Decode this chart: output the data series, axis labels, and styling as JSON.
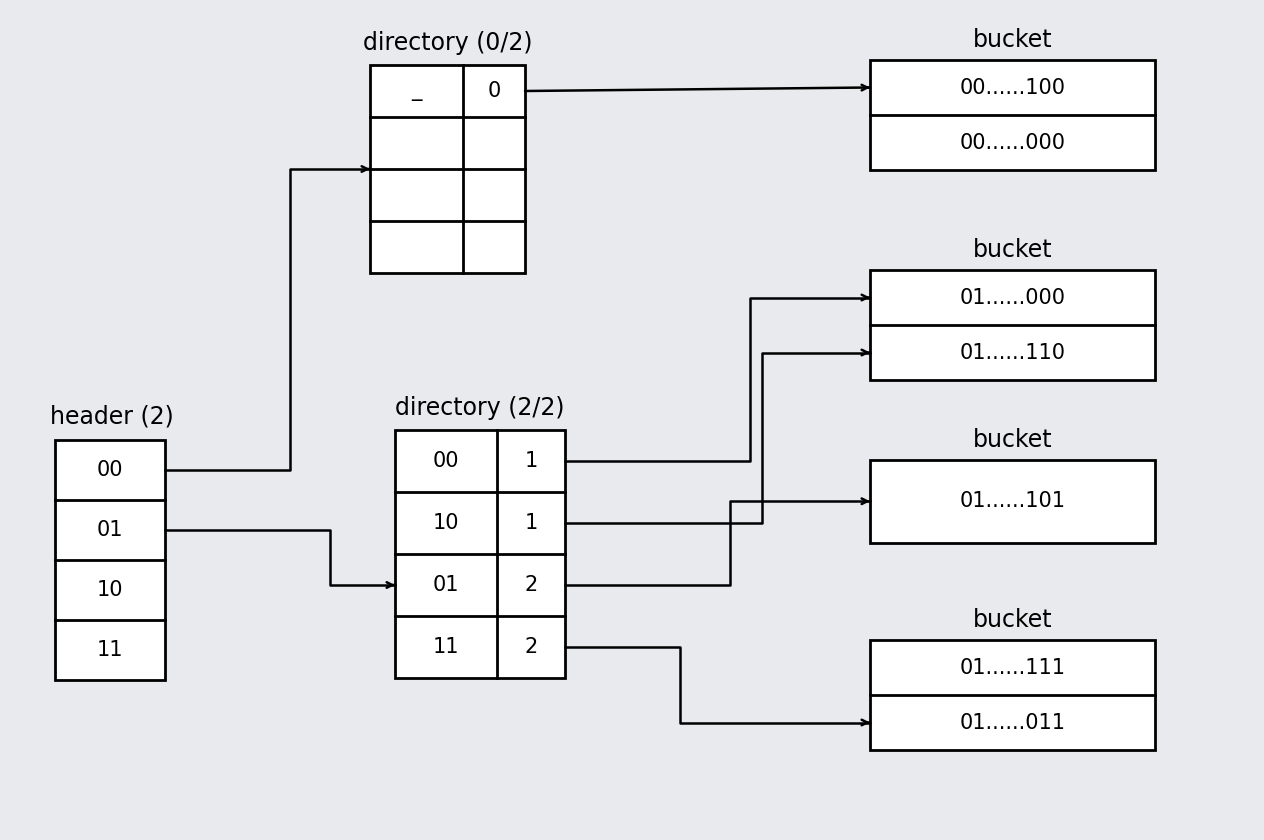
{
  "bg_color": "#e8eaed",
  "font_size": 15,
  "label_font_size": 17,
  "header_label": "header (2)",
  "header_rows": [
    "00",
    "01",
    "10",
    "11"
  ],
  "dir1_label": "directory (0/2)",
  "dir1_rows": [
    [
      "_",
      "0"
    ],
    [
      "",
      ""
    ],
    [
      "",
      ""
    ],
    [
      "",
      ""
    ]
  ],
  "dir2_label": "directory (2/2)",
  "dir2_rows": [
    [
      "00",
      "1"
    ],
    [
      "10",
      "1"
    ],
    [
      "01",
      "2"
    ],
    [
      "11",
      "2"
    ]
  ],
  "bucket1_label": "bucket",
  "bucket1_rows": [
    "00......100",
    "00......000"
  ],
  "bucket2_label": "bucket",
  "bucket2_rows": [
    "01......000",
    "01......110"
  ],
  "bucket3_label": "bucket",
  "bucket3_rows": [
    "01......101"
  ],
  "bucket4_label": "bucket",
  "bucket4_rows": [
    "01......111",
    "01......011"
  ]
}
